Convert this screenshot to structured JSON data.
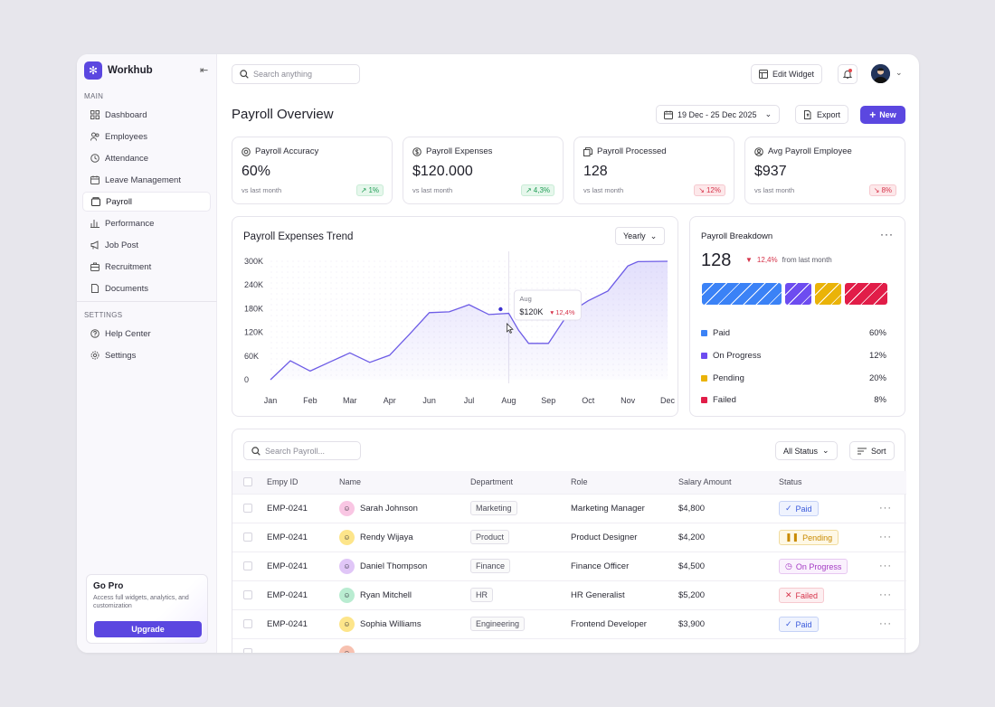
{
  "brand": {
    "name": "Workhub"
  },
  "sidebar": {
    "main_label": "MAIN",
    "items": [
      {
        "label": "Dashboard",
        "icon": "grid-icon"
      },
      {
        "label": "Employees",
        "icon": "users-icon"
      },
      {
        "label": "Attendance",
        "icon": "clock-icon"
      },
      {
        "label": "Leave Management",
        "icon": "calendar-icon"
      },
      {
        "label": "Payroll",
        "icon": "wallet-icon"
      },
      {
        "label": "Performance",
        "icon": "bar-chart-icon"
      },
      {
        "label": "Job Post",
        "icon": "megaphone-icon"
      },
      {
        "label": "Recruitment",
        "icon": "briefcase-icon"
      },
      {
        "label": "Documents",
        "icon": "document-icon"
      }
    ],
    "settings_label": "SETTINGS",
    "settings_items": [
      {
        "label": "Help Center",
        "icon": "help-icon"
      },
      {
        "label": "Settings",
        "icon": "gear-icon"
      }
    ],
    "gopro": {
      "title": "Go Pro",
      "text": "Access full widgets, analytics, and customization",
      "button": "Upgrade"
    }
  },
  "header": {
    "search_placeholder": "Search anything",
    "edit_widget": "Edit Widget"
  },
  "page": {
    "title": "Payroll Overview",
    "date_range": "19 Dec - 25 Dec 2025",
    "export": "Export",
    "new": "New"
  },
  "stats": [
    {
      "title": "Payroll Accuracy",
      "value": "60%",
      "sub": "vs last month",
      "change": "1%",
      "trend": "up"
    },
    {
      "title": "Payroll Expenses",
      "value": "$120.000",
      "sub": "vs last month",
      "change": "4,3%",
      "trend": "up"
    },
    {
      "title": "Payroll Processed",
      "value": "128",
      "sub": "vs last month",
      "change": "12%",
      "trend": "down"
    },
    {
      "title": "Avg Payroll Employee",
      "value": "$937",
      "sub": "vs last month",
      "change": "8%",
      "trend": "down"
    }
  ],
  "trend_card": {
    "title": "Payroll Expenses Trend",
    "period": "Yearly"
  },
  "chart_data": {
    "type": "area",
    "title": "Payroll Expenses Trend",
    "categories": [
      "Jan",
      "Feb",
      "Mar",
      "Apr",
      "Jun",
      "Jul",
      "Aug",
      "Sep",
      "Oct",
      "Nov",
      "Dec"
    ],
    "x": [
      0,
      0.5,
      1,
      1.5,
      2,
      2.5,
      3,
      3.5,
      4,
      4.5,
      5,
      5.5,
      6,
      6.25,
      6.5,
      7,
      7.5,
      8,
      8.5,
      9,
      9.25,
      10
    ],
    "values": [
      0,
      48000,
      22000,
      45000,
      68000,
      44000,
      62000,
      115000,
      170000,
      172000,
      190000,
      165000,
      168000,
      125000,
      92000,
      92000,
      168000,
      200000,
      225000,
      288000,
      299000,
      300000
    ],
    "ylim": [
      0,
      300000
    ],
    "yticks": [
      "300K",
      "240K",
      "180K",
      "120K",
      "60K",
      "0"
    ],
    "tooltip": {
      "label": "Aug",
      "value": "$120K",
      "change": "12,4%"
    }
  },
  "breakdown": {
    "title": "Payroll Breakdown",
    "total": "128",
    "change": "12,4%",
    "change_text": "from last month",
    "items": [
      {
        "label": "Paid",
        "pct": "60%",
        "value": 60,
        "color": "#3b82f6"
      },
      {
        "label": "On Progress",
        "pct": "12%",
        "value": 12,
        "color": "#6d4cf0"
      },
      {
        "label": "Pending",
        "pct": "20%",
        "value": 20,
        "color": "#eab308"
      },
      {
        "label": "Failed",
        "pct": "8%",
        "value": 8,
        "color": "#e11d48"
      }
    ]
  },
  "table": {
    "search_placeholder": "Search Payroll...",
    "filter": "All Status",
    "sort": "Sort",
    "columns": [
      "Empy ID",
      "Name",
      "Department",
      "Role",
      "Salary Amount",
      "Status"
    ],
    "rows": [
      {
        "id": "EMP-0241",
        "name": "Sarah Johnson",
        "dept": "Marketing",
        "role": "Marketing Manager",
        "salary": "$4,800",
        "status": "Paid"
      },
      {
        "id": "EMP-0241",
        "name": "Rendy Wijaya",
        "dept": "Product",
        "role": "Product Designer",
        "salary": "$4,200",
        "status": "Pending"
      },
      {
        "id": "EMP-0241",
        "name": "Daniel Thompson",
        "dept": "Finance",
        "role": "Finance Officer",
        "salary": "$4,500",
        "status": "On Progress"
      },
      {
        "id": "EMP-0241",
        "name": "Ryan Mitchell",
        "dept": "HR",
        "role": "HR Generalist",
        "salary": "$5,200",
        "status": "Failed"
      },
      {
        "id": "EMP-0241",
        "name": "Sophia Williams",
        "dept": "Engineering",
        "role": "Frontend Developer",
        "salary": "$3,900",
        "status": "Paid"
      }
    ]
  }
}
